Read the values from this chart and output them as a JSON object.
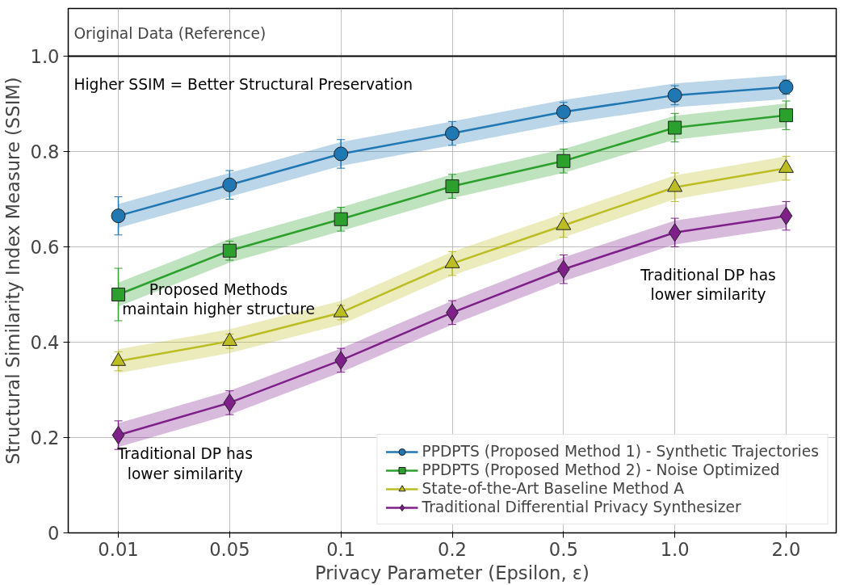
{
  "chart_data": {
    "type": "line",
    "xlabel": "Privacy Parameter (Epsilon, ε)",
    "ylabel": "Structural Similarity Index Measure (SSIM)",
    "categories": [
      "0.01",
      "0.05",
      "0.1",
      "0.2",
      "0.5",
      "1.0",
      "2.0"
    ],
    "ylim": [
      0,
      1.1
    ],
    "yticks": [
      {
        "value": 0,
        "label": "0"
      },
      0.2,
      0.4,
      0.6,
      0.8,
      {
        "value": 1.0,
        "label": "1.0"
      }
    ],
    "grid": true,
    "legend": "bottom right",
    "line_style": "solid",
    "series": [
      {
        "name": "PPDPTS (Proposed Method 1) - Synthetic Trajectories",
        "color": "#1f77b4",
        "marker": "circle",
        "values": [
          0.665,
          0.73,
          0.795,
          0.838,
          0.883,
          0.918,
          0.935
        ],
        "errors": [
          0.04,
          0.03,
          0.03,
          0.025,
          0.02,
          0.02,
          0.015
        ],
        "lower": [
          0.64,
          0.705,
          0.77,
          0.813,
          0.858,
          0.893,
          0.91
        ],
        "upper": [
          0.69,
          0.755,
          0.82,
          0.863,
          0.908,
          0.943,
          0.96
        ]
      },
      {
        "name": "PPDPTS (Proposed Method 2) - Noise Optimized",
        "color": "#2ca02c",
        "marker": "square",
        "values": [
          0.5,
          0.592,
          0.658,
          0.727,
          0.78,
          0.85,
          0.876
        ],
        "errors": [
          0.055,
          0.02,
          0.025,
          0.025,
          0.025,
          0.03,
          0.03
        ],
        "lower": [
          0.475,
          0.567,
          0.633,
          0.702,
          0.755,
          0.825,
          0.851
        ],
        "upper": [
          0.525,
          0.617,
          0.683,
          0.752,
          0.805,
          0.875,
          0.901
        ]
      },
      {
        "name": "State-of-the-Art Baseline Method A",
        "color": "#bcbd22",
        "marker": "triangle",
        "values": [
          0.36,
          0.402,
          0.462,
          0.565,
          0.645,
          0.725,
          0.765
        ],
        "errors": [
          0.02,
          0.015,
          0.015,
          0.025,
          0.025,
          0.03,
          0.025
        ],
        "lower": [
          0.335,
          0.377,
          0.437,
          0.54,
          0.62,
          0.7,
          0.74
        ],
        "upper": [
          0.385,
          0.427,
          0.487,
          0.59,
          0.67,
          0.75,
          0.79
        ]
      },
      {
        "name": "Traditional Differential Privacy Synthesizer",
        "color": "#7f1f8a",
        "marker": "diamond",
        "values": [
          0.205,
          0.273,
          0.362,
          0.462,
          0.553,
          0.63,
          0.665
        ],
        "errors": [
          0.03,
          0.025,
          0.025,
          0.025,
          0.03,
          0.03,
          0.03
        ],
        "lower": [
          0.18,
          0.248,
          0.337,
          0.437,
          0.528,
          0.605,
          0.64
        ],
        "upper": [
          0.23,
          0.298,
          0.387,
          0.487,
          0.578,
          0.655,
          0.69
        ]
      }
    ],
    "ref_lines": [
      {
        "axis": "y",
        "value": 1.0,
        "label": "Original Data (Reference)",
        "color": "#000000"
      }
    ],
    "annotations": [
      "Higher SSIM = Better Structural Preservation",
      "Proposed Methods\nmaintain higher structure",
      "Traditional DP has\nlower similarity",
      "Traditional DP has\nlower similarity"
    ]
  }
}
